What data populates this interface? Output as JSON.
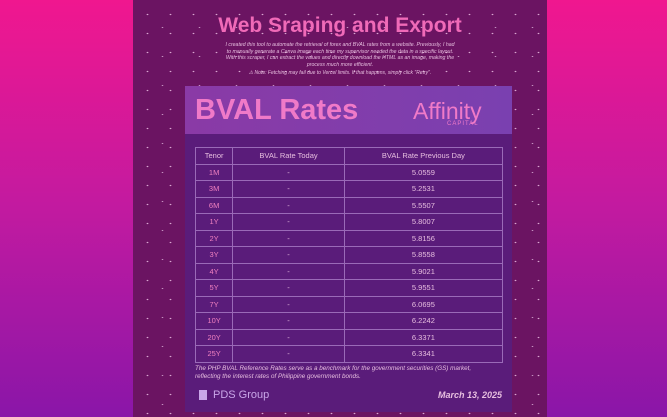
{
  "header": {
    "title": "Web Sraping and Export",
    "description": "I created this tool to automate the retrieval of forex and BVAL rates from a website. Previously, I had to manually generate a Canva image each time my supervisor needed the data in a specific layout. With this scraper, I can extract the values and directly download the HTML as an image, making the process much more efficient.",
    "note": "⚠ Note: Fetching may fail due to Vercel limits. If that happens, simply click \"Retry\"."
  },
  "card": {
    "title": "BVAL Rates",
    "logo": "Affinity",
    "logo_sub": "CAPITAL",
    "table": {
      "columns": [
        "Tenor",
        "BVAL Rate Today",
        "BVAL Rate Previous Day"
      ],
      "rows": [
        [
          "1M",
          "-",
          "5.0559"
        ],
        [
          "3M",
          "-",
          "5.2531"
        ],
        [
          "6M",
          "-",
          "5.5507"
        ],
        [
          "1Y",
          "-",
          "5.8007"
        ],
        [
          "2Y",
          "-",
          "5.8156"
        ],
        [
          "3Y",
          "-",
          "5.8558"
        ],
        [
          "4Y",
          "-",
          "5.9021"
        ],
        [
          "5Y",
          "-",
          "5.9551"
        ],
        [
          "7Y",
          "-",
          "6.0695"
        ],
        [
          "10Y",
          "-",
          "6.2242"
        ],
        [
          "20Y",
          "-",
          "6.3371"
        ],
        [
          "25Y",
          "-",
          "6.3341"
        ]
      ]
    },
    "footnote": "The PHP BVAL Reference Rates serve as a benchmark for the government securities (GS) market, reflecting the interest rates of Philippine government bonds.",
    "brand": "PDS Group",
    "date": "March 13, 2025"
  }
}
